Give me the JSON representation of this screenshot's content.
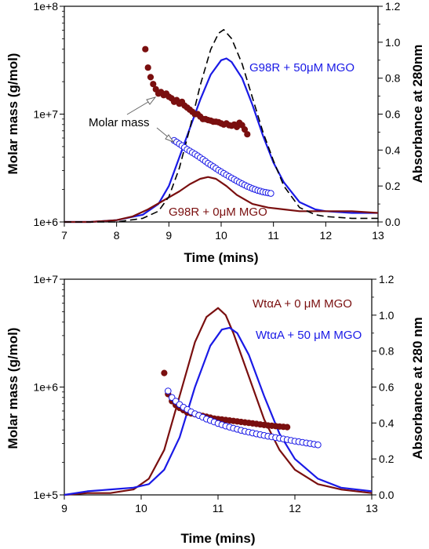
{
  "colors": {
    "treated": "#1a1ae6",
    "untreated": "#7a0f0f",
    "dashed": "#000000",
    "axis": "#000000"
  },
  "chart_data": [
    {
      "type": "line",
      "panel": "top",
      "xlabel": "Time (mins)",
      "ylabel": "Molar mass (g/mol)",
      "y2label": "Absorbance at 280nm",
      "xlim": [
        7,
        13
      ],
      "ylim": [
        1000000,
        100000000
      ],
      "yscale": "log",
      "y2lim": [
        0,
        1.2
      ],
      "xticks": [
        "7",
        "8",
        "9",
        "10",
        "11",
        "12",
        "13"
      ],
      "yticks": [
        "1e+6",
        "1e+7",
        "1e+8"
      ],
      "y2ticks": [
        "0.0",
        "0.2",
        "0.4",
        "0.6",
        "0.8",
        "1.0",
        "1.2"
      ],
      "grid": false,
      "annotations": {
        "treated_label": "G98R + 50μM MGO",
        "untreated_label": "G98R + 0μM MGO",
        "molar_mass_label": "Molar mass"
      },
      "series": [
        {
          "axis": "right",
          "style": "solid",
          "color_key": "treated",
          "x": [
            7.0,
            7.5,
            8.0,
            8.5,
            8.8,
            9.0,
            9.2,
            9.4,
            9.6,
            9.8,
            10.0,
            10.1,
            10.2,
            10.4,
            10.6,
            10.8,
            11.0,
            11.2,
            11.5,
            11.8,
            12.0,
            12.5,
            13.0
          ],
          "y": [
            0.0,
            0.0,
            0.01,
            0.04,
            0.1,
            0.2,
            0.36,
            0.52,
            0.68,
            0.82,
            0.9,
            0.91,
            0.89,
            0.8,
            0.65,
            0.48,
            0.33,
            0.22,
            0.11,
            0.07,
            0.06,
            0.05,
            0.05
          ]
        },
        {
          "axis": "right",
          "style": "solid",
          "color_key": "untreated",
          "x": [
            7.0,
            7.5,
            8.0,
            8.3,
            8.6,
            8.9,
            9.2,
            9.4,
            9.6,
            9.75,
            9.9,
            10.1,
            10.3,
            10.6,
            10.9,
            11.2,
            11.5,
            12.0,
            12.5,
            13.0
          ],
          "y": [
            0.0,
            0.0,
            0.01,
            0.03,
            0.07,
            0.12,
            0.17,
            0.21,
            0.24,
            0.25,
            0.24,
            0.2,
            0.15,
            0.1,
            0.08,
            0.07,
            0.06,
            0.06,
            0.06,
            0.05
          ]
        },
        {
          "axis": "right",
          "style": "dashed",
          "color_key": "dashed",
          "x": [
            7.0,
            7.5,
            8.0,
            8.5,
            8.8,
            9.0,
            9.2,
            9.4,
            9.6,
            9.8,
            9.95,
            10.05,
            10.2,
            10.4,
            10.6,
            10.8,
            11.0,
            11.2,
            11.5,
            11.8,
            12.0,
            12.5,
            13.0
          ],
          "y": [
            0.0,
            0.0,
            0.0,
            0.02,
            0.06,
            0.14,
            0.3,
            0.52,
            0.76,
            0.96,
            1.05,
            1.07,
            1.02,
            0.88,
            0.69,
            0.5,
            0.34,
            0.2,
            0.08,
            0.04,
            0.03,
            0.02,
            0.02
          ]
        },
        {
          "axis": "left",
          "style": "markers-filled",
          "color_key": "untreated",
          "x": [
            8.55,
            8.6,
            8.65,
            8.7,
            8.75,
            8.8,
            8.85,
            8.9,
            8.95,
            9.0,
            9.05,
            9.1,
            9.15,
            9.2,
            9.25,
            9.3,
            9.35,
            9.4,
            9.45,
            9.5,
            9.55,
            9.6,
            9.65,
            9.7,
            9.75,
            9.8,
            9.85,
            9.9,
            9.95,
            10.0,
            10.05,
            10.1,
            10.15,
            10.2,
            10.25,
            10.3,
            10.35,
            10.4,
            10.45,
            10.5
          ],
          "y": [
            40000000,
            27000000,
            22000000,
            19000000,
            17000000,
            15500000,
            16000000,
            15000000,
            15500000,
            14500000,
            14000000,
            13000000,
            13500000,
            12500000,
            13000000,
            12000000,
            11500000,
            11000000,
            10500000,
            10000000,
            10000000,
            9500000,
            9000000,
            9000000,
            8800000,
            8700000,
            8500000,
            8500000,
            8400000,
            8200000,
            8000000,
            8200000,
            7900000,
            7800000,
            8000000,
            7600000,
            8300000,
            7900000,
            7200000,
            6500000
          ]
        },
        {
          "axis": "left",
          "style": "markers-open",
          "color_key": "treated",
          "x": [
            9.1,
            9.15,
            9.2,
            9.25,
            9.3,
            9.35,
            9.4,
            9.45,
            9.5,
            9.55,
            9.6,
            9.65,
            9.7,
            9.75,
            9.8,
            9.85,
            9.9,
            9.95,
            10.0,
            10.05,
            10.1,
            10.15,
            10.2,
            10.25,
            10.3,
            10.35,
            10.4,
            10.45,
            10.5,
            10.55,
            10.6,
            10.65,
            10.7,
            10.75,
            10.8,
            10.85,
            10.9,
            10.95
          ],
          "y": [
            5700000,
            5500000,
            5300000,
            5100000,
            4900000,
            4700000,
            4550000,
            4400000,
            4250000,
            4100000,
            3950000,
            3800000,
            3650000,
            3500000,
            3380000,
            3260000,
            3140000,
            3020000,
            2920000,
            2820000,
            2730000,
            2640000,
            2560000,
            2480000,
            2400000,
            2330000,
            2260000,
            2200000,
            2140000,
            2090000,
            2040000,
            2000000,
            1960000,
            1930000,
            1900000,
            1880000,
            1860000,
            1840000
          ]
        }
      ]
    },
    {
      "type": "line",
      "panel": "bottom",
      "xlabel": "Time (mins)",
      "ylabel": "Molar mass (g/mol)",
      "y2label": "Absorbance at 280 nm",
      "xlim": [
        9,
        13
      ],
      "ylim": [
        100000,
        10000000
      ],
      "yscale": "log",
      "y2lim": [
        0,
        1.2
      ],
      "xticks": [
        "9",
        "10",
        "11",
        "12",
        "13"
      ],
      "yticks": [
        "1e+5",
        "1e+6",
        "1e+7"
      ],
      "y2ticks": [
        "0.0",
        "0.2",
        "0.4",
        "0.6",
        "0.8",
        "1.0",
        "1.2"
      ],
      "grid": false,
      "annotations": {
        "untreated_label": "WtαA + 0 μM MGO",
        "treated_label": "WtαA + 50 μM MGO"
      },
      "series": [
        {
          "axis": "right",
          "style": "solid",
          "color_key": "untreated",
          "x": [
            9.0,
            9.3,
            9.6,
            9.9,
            10.1,
            10.3,
            10.5,
            10.7,
            10.85,
            11.0,
            11.1,
            11.2,
            11.4,
            11.6,
            11.8,
            12.0,
            12.3,
            12.6,
            13.0
          ],
          "y": [
            0.0,
            0.01,
            0.01,
            0.03,
            0.09,
            0.25,
            0.55,
            0.85,
            0.99,
            1.04,
            1.0,
            0.9,
            0.66,
            0.42,
            0.25,
            0.14,
            0.06,
            0.03,
            0.01
          ]
        },
        {
          "axis": "right",
          "style": "solid",
          "color_key": "treated",
          "x": [
            9.0,
            9.3,
            9.6,
            9.9,
            10.1,
            10.3,
            10.5,
            10.7,
            10.9,
            11.05,
            11.15,
            11.25,
            11.4,
            11.6,
            11.8,
            12.0,
            12.3,
            12.6,
            13.0
          ],
          "y": [
            0.0,
            0.02,
            0.03,
            0.04,
            0.06,
            0.14,
            0.32,
            0.6,
            0.83,
            0.92,
            0.93,
            0.9,
            0.78,
            0.55,
            0.34,
            0.2,
            0.09,
            0.04,
            0.02
          ]
        },
        {
          "axis": "left",
          "style": "markers-filled",
          "color_key": "untreated",
          "x": [
            10.3,
            10.35,
            10.4,
            10.45,
            10.5,
            10.55,
            10.6,
            10.65,
            10.7,
            10.75,
            10.8,
            10.85,
            10.9,
            10.95,
            11.0,
            11.05,
            11.1,
            11.15,
            11.2,
            11.25,
            11.3,
            11.35,
            11.4,
            11.45,
            11.5,
            11.55,
            11.6,
            11.65,
            11.7,
            11.75,
            11.8,
            11.85,
            11.9
          ],
          "y": [
            1350000,
            860000,
            740000,
            680000,
            640000,
            610000,
            580000,
            570000,
            560000,
            550000,
            540000,
            530000,
            520000,
            510000,
            505000,
            500000,
            495000,
            490000,
            485000,
            480000,
            475000,
            470000,
            465000,
            460000,
            455000,
            450000,
            445000,
            440000,
            437000,
            434000,
            431000,
            428000,
            425000
          ]
        },
        {
          "axis": "left",
          "style": "markers-open",
          "color_key": "treated",
          "x": [
            10.35,
            10.4,
            10.45,
            10.5,
            10.55,
            10.6,
            10.65,
            10.7,
            10.75,
            10.8,
            10.85,
            10.9,
            10.95,
            11.0,
            11.05,
            11.1,
            11.15,
            11.2,
            11.25,
            11.3,
            11.35,
            11.4,
            11.45,
            11.5,
            11.55,
            11.6,
            11.65,
            11.7,
            11.75,
            11.8,
            11.85,
            11.9,
            11.95,
            12.0,
            12.05,
            12.1,
            12.15,
            12.2,
            12.25,
            12.3
          ],
          "y": [
            920000,
            800000,
            740000,
            690000,
            650000,
            620000,
            590000,
            565000,
            545000,
            525000,
            505000,
            490000,
            475000,
            460000,
            447000,
            435000,
            425000,
            415000,
            406000,
            397000,
            389000,
            382000,
            375000,
            368000,
            362000,
            356000,
            350000,
            345000,
            340000,
            335000,
            330000,
            325000,
            320000,
            315000,
            311000,
            307000,
            303000,
            299000,
            295000,
            291000
          ]
        }
      ]
    }
  ]
}
